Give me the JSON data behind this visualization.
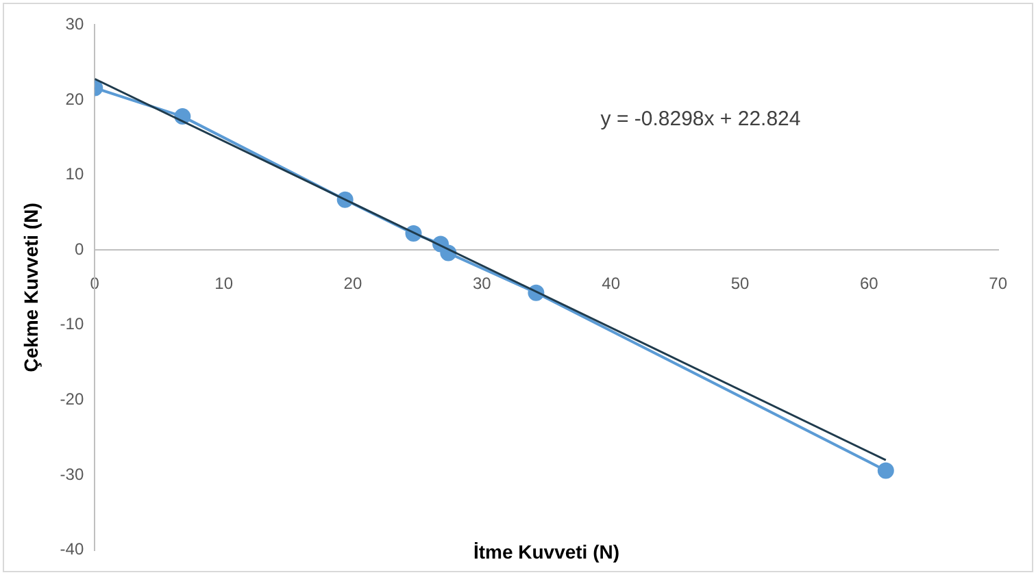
{
  "chart_data": {
    "type": "line",
    "xlabel": "İtme Kuvveti (N)",
    "ylabel": "Çekme Kuvveti (N)",
    "x": [
      0,
      6.8,
      19.4,
      24.7,
      26.8,
      27.4,
      34.2,
      61.3
    ],
    "series": [
      {
        "color": "#5b9bd5",
        "values": [
          21.6,
          17.8,
          6.7,
          2.2,
          0.8,
          -0.4,
          -5.7,
          -29.4
        ],
        "marker": "circle"
      },
      {
        "type": "line",
        "color": "#1f3b4d",
        "x": [
          0,
          61.3
        ],
        "values": [
          22.8,
          -28.0
        ],
        "marker": "none"
      }
    ],
    "xlim": [
      0,
      70
    ],
    "xticks": [
      0,
      10,
      20,
      30,
      40,
      50,
      60,
      70
    ],
    "ylim": [
      -40,
      30
    ],
    "yticks": [
      -40,
      -30,
      -20,
      -10,
      0,
      10,
      20,
      30
    ],
    "grid": false,
    "legend": false,
    "annotations": [
      "y = -0.8298x + 22.824"
    ]
  }
}
